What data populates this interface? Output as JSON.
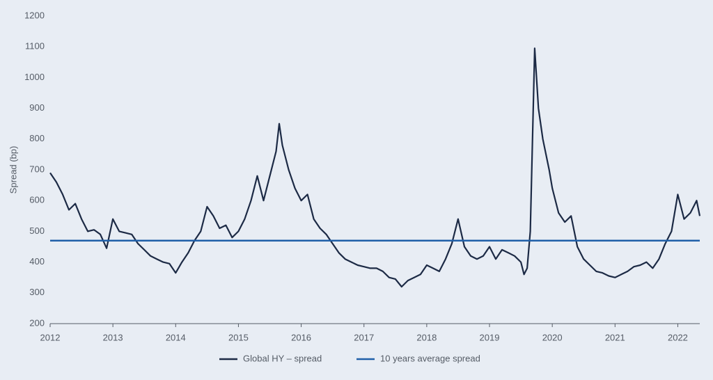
{
  "chart_data": {
    "type": "line",
    "ylabel": "Spread (bp)",
    "xlim": [
      2012,
      2022.35
    ],
    "xticks": [
      2012,
      2013,
      2014,
      2015,
      2016,
      2017,
      2018,
      2019,
      2020,
      2021,
      2022
    ],
    "ylim": [
      200,
      1200
    ],
    "yticks": [
      200,
      300,
      400,
      500,
      600,
      700,
      800,
      900,
      1000,
      1100,
      1200
    ],
    "grid": false,
    "legend": "bottom",
    "series": [
      {
        "name": "Global HY – spread",
        "color": "#1c2a45",
        "x": [
          2012.0,
          2012.1,
          2012.2,
          2012.3,
          2012.4,
          2012.5,
          2012.6,
          2012.7,
          2012.8,
          2012.9,
          2013.0,
          2013.1,
          2013.2,
          2013.3,
          2013.4,
          2013.5,
          2013.6,
          2013.7,
          2013.8,
          2013.9,
          2014.0,
          2014.1,
          2014.2,
          2014.3,
          2014.4,
          2014.5,
          2014.6,
          2014.7,
          2014.8,
          2014.9,
          2015.0,
          2015.1,
          2015.2,
          2015.3,
          2015.4,
          2015.5,
          2015.6,
          2015.65,
          2015.7,
          2015.8,
          2015.9,
          2016.0,
          2016.1,
          2016.2,
          2016.3,
          2016.4,
          2016.5,
          2016.6,
          2016.7,
          2016.8,
          2016.9,
          2017.0,
          2017.1,
          2017.2,
          2017.3,
          2017.4,
          2017.5,
          2017.6,
          2017.7,
          2017.8,
          2017.9,
          2018.0,
          2018.1,
          2018.2,
          2018.3,
          2018.4,
          2018.5,
          2018.6,
          2018.7,
          2018.8,
          2018.9,
          2019.0,
          2019.1,
          2019.2,
          2019.3,
          2019.4,
          2019.5,
          2019.55,
          2019.6,
          2019.65,
          2019.72,
          2019.78,
          2019.85,
          2019.95,
          2020.0,
          2020.1,
          2020.2,
          2020.3,
          2020.4,
          2020.5,
          2020.6,
          2020.7,
          2020.8,
          2020.9,
          2021.0,
          2021.1,
          2021.2,
          2021.3,
          2021.4,
          2021.5,
          2021.6,
          2021.7,
          2021.8,
          2021.9,
          2022.0,
          2022.1,
          2022.2,
          2022.3,
          2022.35
        ],
        "values": [
          690,
          660,
          620,
          570,
          590,
          540,
          500,
          505,
          490,
          445,
          540,
          500,
          495,
          490,
          460,
          440,
          420,
          410,
          400,
          395,
          365,
          400,
          430,
          470,
          500,
          580,
          550,
          510,
          520,
          480,
          500,
          540,
          600,
          680,
          600,
          680,
          760,
          850,
          780,
          700,
          640,
          600,
          620,
          540,
          510,
          490,
          460,
          430,
          410,
          400,
          390,
          385,
          380,
          380,
          370,
          350,
          345,
          320,
          340,
          350,
          360,
          390,
          380,
          370,
          410,
          460,
          540,
          450,
          420,
          410,
          420,
          450,
          410,
          440,
          430,
          420,
          400,
          360,
          380,
          500,
          1095,
          900,
          800,
          700,
          640,
          560,
          530,
          550,
          450,
          410,
          390,
          370,
          365,
          355,
          350,
          360,
          370,
          385,
          390,
          400,
          380,
          410,
          460,
          500,
          620,
          540,
          560,
          600,
          550
        ]
      },
      {
        "name": "10 years average spread",
        "color": "#1f5fa8",
        "x": [
          2012,
          2022.35
        ],
        "values": [
          470,
          470
        ]
      }
    ]
  }
}
